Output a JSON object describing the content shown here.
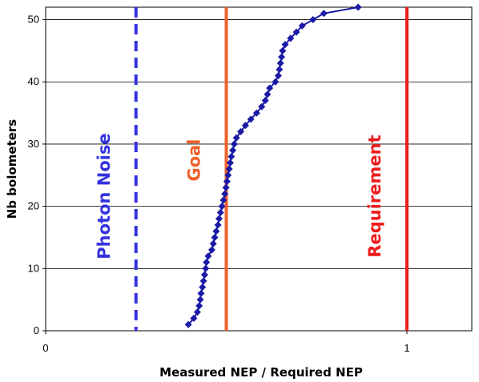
{
  "chart_data": {
    "type": "scatter",
    "title": "",
    "xlabel": "Measured NEP / Required NEP",
    "ylabel": "Nb bolometers",
    "xlim": [
      0,
      1.2
    ],
    "ylim": [
      0,
      52
    ],
    "x_ticks": [
      0,
      1
    ],
    "x_tick_labels": [
      "0",
      "1"
    ],
    "y_ticks": [
      0,
      10,
      20,
      30,
      40,
      50
    ],
    "y_tick_labels": [
      "0",
      "10",
      "20",
      "30",
      "40",
      "50"
    ],
    "grid": "horizontal",
    "legend": "none",
    "series": [
      {
        "color": "#1a1aa6",
        "marker": "diamond",
        "line": true,
        "points": [
          {
            "x": 0.395,
            "y": 1
          },
          {
            "x": 0.41,
            "y": 2
          },
          {
            "x": 0.42,
            "y": 3
          },
          {
            "x": 0.425,
            "y": 4
          },
          {
            "x": 0.428,
            "y": 5
          },
          {
            "x": 0.43,
            "y": 6
          },
          {
            "x": 0.434,
            "y": 7
          },
          {
            "x": 0.437,
            "y": 8
          },
          {
            "x": 0.44,
            "y": 9
          },
          {
            "x": 0.443,
            "y": 10
          },
          {
            "x": 0.445,
            "y": 11
          },
          {
            "x": 0.45,
            "y": 12
          },
          {
            "x": 0.46,
            "y": 13
          },
          {
            "x": 0.464,
            "y": 14
          },
          {
            "x": 0.468,
            "y": 15
          },
          {
            "x": 0.472,
            "y": 16
          },
          {
            "x": 0.477,
            "y": 17
          },
          {
            "x": 0.48,
            "y": 18
          },
          {
            "x": 0.484,
            "y": 19
          },
          {
            "x": 0.488,
            "y": 20
          },
          {
            "x": 0.492,
            "y": 21
          },
          {
            "x": 0.496,
            "y": 22
          },
          {
            "x": 0.499,
            "y": 23
          },
          {
            "x": 0.502,
            "y": 24
          },
          {
            "x": 0.505,
            "y": 25
          },
          {
            "x": 0.508,
            "y": 26
          },
          {
            "x": 0.511,
            "y": 27
          },
          {
            "x": 0.514,
            "y": 28
          },
          {
            "x": 0.518,
            "y": 29
          },
          {
            "x": 0.522,
            "y": 30
          },
          {
            "x": 0.528,
            "y": 31
          },
          {
            "x": 0.54,
            "y": 32
          },
          {
            "x": 0.553,
            "y": 33
          },
          {
            "x": 0.568,
            "y": 34
          },
          {
            "x": 0.584,
            "y": 35
          },
          {
            "x": 0.598,
            "y": 36
          },
          {
            "x": 0.608,
            "y": 37
          },
          {
            "x": 0.614,
            "y": 38
          },
          {
            "x": 0.62,
            "y": 39
          },
          {
            "x": 0.636,
            "y": 40
          },
          {
            "x": 0.644,
            "y": 41
          },
          {
            "x": 0.647,
            "y": 42
          },
          {
            "x": 0.65,
            "y": 43
          },
          {
            "x": 0.653,
            "y": 44
          },
          {
            "x": 0.656,
            "y": 45
          },
          {
            "x": 0.663,
            "y": 46
          },
          {
            "x": 0.678,
            "y": 47
          },
          {
            "x": 0.694,
            "y": 48
          },
          {
            "x": 0.71,
            "y": 49
          },
          {
            "x": 0.74,
            "y": 50
          },
          {
            "x": 0.77,
            "y": 51
          },
          {
            "x": 0.865,
            "y": 52
          }
        ]
      }
    ],
    "reference_lines": [
      {
        "x": 0.25,
        "label": "Photon Noise",
        "color": "#3333e0",
        "style": "dashed"
      },
      {
        "x": 0.5,
        "label": "Goal",
        "color": "#f0602a",
        "style": "solid"
      },
      {
        "x": 1.0,
        "label": "Requirement",
        "color": "#ee1c1c",
        "style": "solid"
      }
    ]
  }
}
